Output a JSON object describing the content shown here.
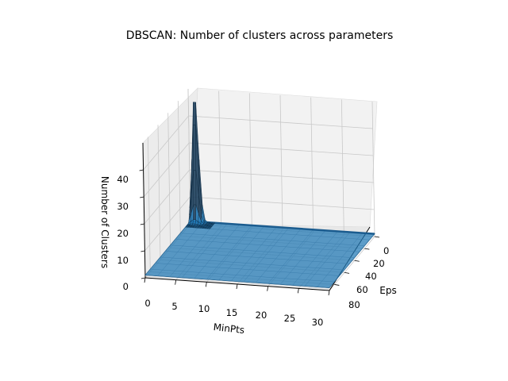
{
  "chart_data": {
    "type": "surface",
    "title": "DBSCAN: Number of clusters across parameters",
    "xlabel": "MinPts",
    "ylabel": "Eps",
    "zlabel": "Number of Clusters",
    "x_ticks": [
      "0",
      "5",
      "10",
      "15",
      "20",
      "25",
      "30"
    ],
    "y_ticks": [
      "0",
      "20",
      "40",
      "60",
      "80"
    ],
    "z_ticks": [
      "0",
      "10",
      "20",
      "30",
      "40"
    ],
    "xlim": [
      0,
      30
    ],
    "ylim": [
      0,
      90
    ],
    "zlim": [
      0,
      50
    ],
    "grid": true,
    "surface_color": "#1f77b4",
    "peak": {
      "minpts": 1,
      "eps": 0,
      "clusters": 49
    },
    "plateau_clusters": 1
  }
}
